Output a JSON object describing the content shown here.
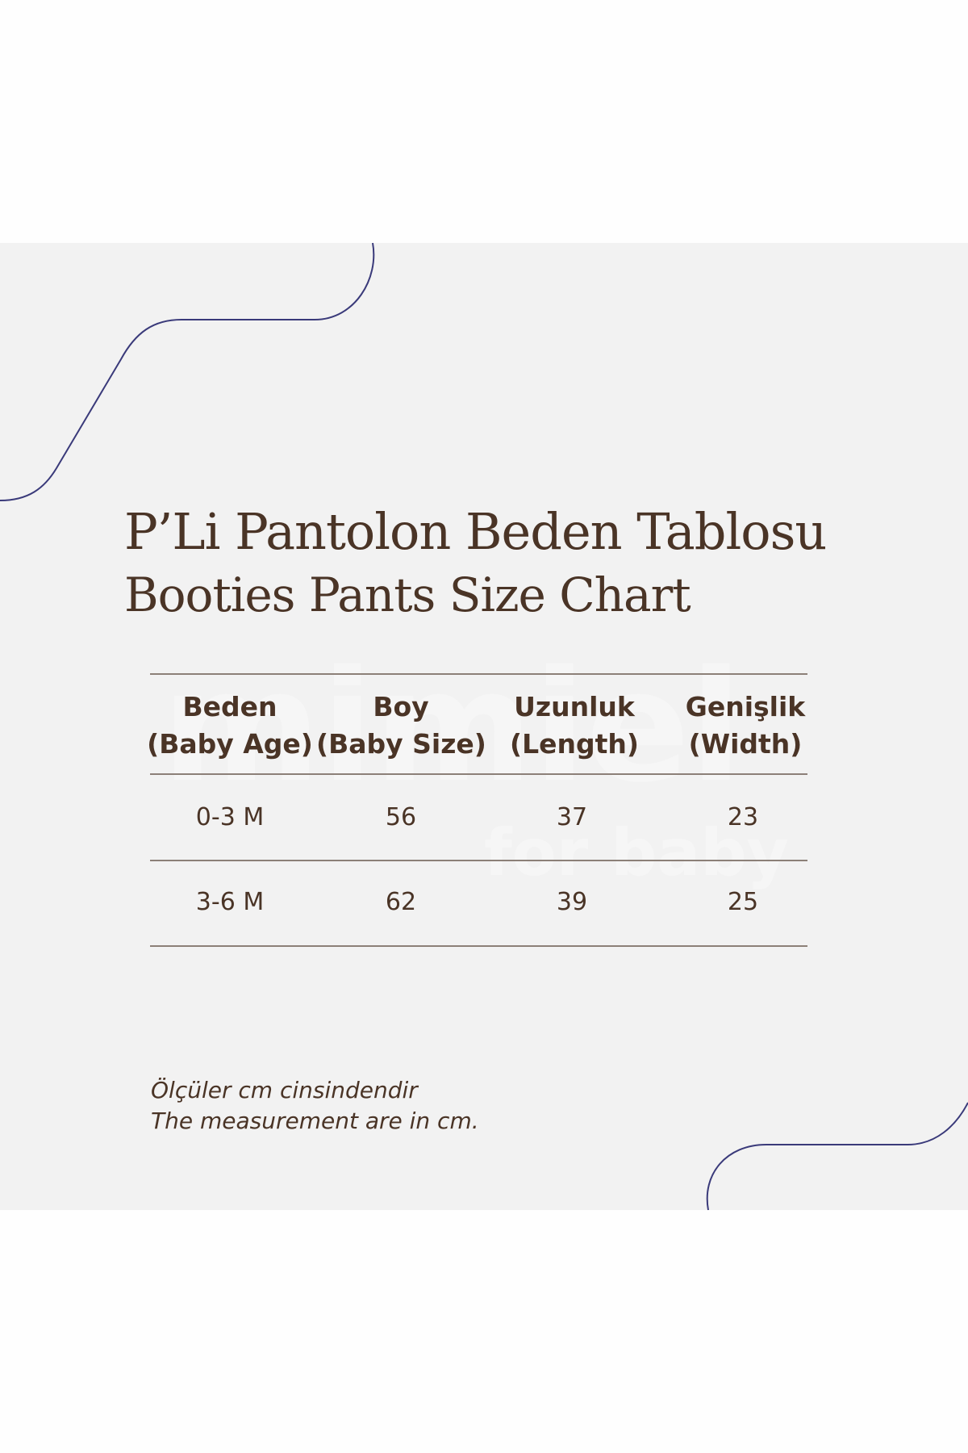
{
  "title": {
    "turkish": "P’Li Pantolon Beden Tablosu",
    "english": "Booties Pants Size Chart"
  },
  "watermark": {
    "brand": "mimiel",
    "tagline": "for baby"
  },
  "colors": {
    "text": "#4a3426",
    "curve": "#3a3a7a",
    "background": "#f2f2f2"
  },
  "table": {
    "headers": [
      {
        "line1": "Beden",
        "line2": "(Baby Age)"
      },
      {
        "line1": "Boy",
        "line2": "(Baby Size)"
      },
      {
        "line1": "Uzunluk",
        "line2": "(Length)"
      },
      {
        "line1": "Genişlik",
        "line2": "(Width)"
      }
    ],
    "rows": [
      [
        "0-3 M",
        "56",
        "37",
        "23"
      ],
      [
        "3-6 M",
        "62",
        "39",
        "25"
      ]
    ]
  },
  "footnote": {
    "turkish": "Ölçüler cm cinsindendir",
    "english": "The measurement are in cm."
  }
}
